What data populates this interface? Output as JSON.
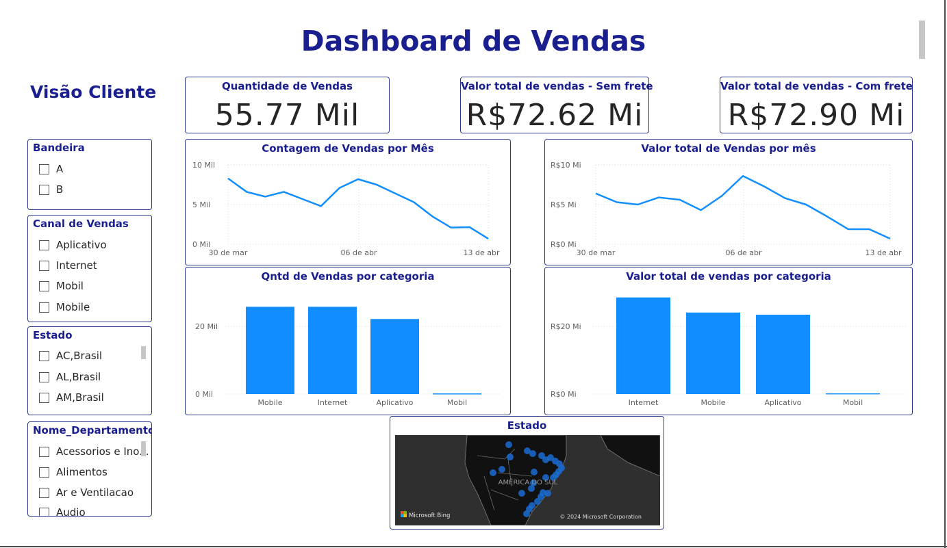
{
  "title": "Dashboard de Vendas",
  "subtitle": "Visão Cliente",
  "colors": {
    "accent": "#1a1f8f",
    "series": "#118dff",
    "border": "#2d3a8c",
    "map_bg": "#2f2f2f"
  },
  "kpis": [
    {
      "title": "Quantidade de Vendas",
      "value": "55.77 Mil"
    },
    {
      "title": "Valor total de vendas - Sem frete",
      "value": "R$72.62 Mi"
    },
    {
      "title": "Valor total de vendas - Com frete",
      "value": "R$72.90 Mi"
    }
  ],
  "slicers": {
    "bandeira": {
      "title": "Bandeira",
      "options": [
        "A",
        "B"
      ]
    },
    "canal": {
      "title": "Canal de Vendas",
      "options": [
        "Aplicativo",
        "Internet",
        "Mobil",
        "Mobile"
      ]
    },
    "estado": {
      "title": "Estado",
      "options": [
        "AC,Brasil",
        "AL,Brasil",
        "AM,Brasil"
      ]
    },
    "departamento": {
      "title": "Nome_Departamento",
      "options": [
        "Acessorios e Ino...",
        "Alimentos",
        "Ar e Ventilacao",
        "Audio"
      ]
    }
  },
  "chart_data": [
    {
      "id": "contagem",
      "type": "line",
      "title": "Contagem de Vendas por Mês",
      "y_ticks": [
        "10 Mil",
        "5 Mil",
        "0 Mil"
      ],
      "x_ticks": [
        "30 de mar",
        "06 de abr",
        "13 de abr"
      ],
      "ylim": [
        0,
        10000
      ],
      "values": [
        8300,
        6600,
        6000,
        6600,
        5700,
        4800,
        7100,
        8200,
        7500,
        6400,
        5300,
        3500,
        2100,
        2150,
        700
      ],
      "grid": true
    },
    {
      "id": "valor_mes",
      "type": "line",
      "title": "Valor total de Vendas por mês",
      "y_ticks": [
        "R$10 Mi",
        "R$5 Mi",
        "R$0 Mi"
      ],
      "x_ticks": [
        "30 de mar",
        "06 de abr",
        "13 de abr"
      ],
      "ylim": [
        0,
        10
      ],
      "values": [
        6.4,
        5.3,
        5.0,
        5.9,
        5.6,
        4.3,
        6.1,
        8.6,
        7.3,
        5.8,
        5.0,
        3.5,
        1.9,
        1.9,
        0.7
      ],
      "grid": true
    },
    {
      "id": "qtd_cat",
      "type": "bar",
      "title": "Qntd de Vendas por categoria",
      "y_ticks": [
        "20 Mil",
        "0 Mil"
      ],
      "ylim": [
        0,
        28000
      ],
      "categories": [
        "Mobile",
        "Internet",
        "Aplicativo",
        "Mobil"
      ],
      "values": [
        24300,
        24300,
        20900,
        180
      ]
    },
    {
      "id": "valor_cat",
      "type": "bar",
      "title": "Valor total de vendas por categoria",
      "y_ticks": [
        "R$20 Mi",
        "R$0 Mi"
      ],
      "ylim": [
        0,
        28
      ],
      "categories": [
        "Internet",
        "Mobile",
        "Aplicativo",
        "Mobil"
      ],
      "values": [
        26.9,
        22.7,
        22.1,
        0.2
      ]
    }
  ],
  "map": {
    "title": "Estado",
    "region_label": "AMÉRICA DO SUL",
    "provider": "Microsoft Bing",
    "copyright": "© 2024 Microsoft Corporation"
  }
}
